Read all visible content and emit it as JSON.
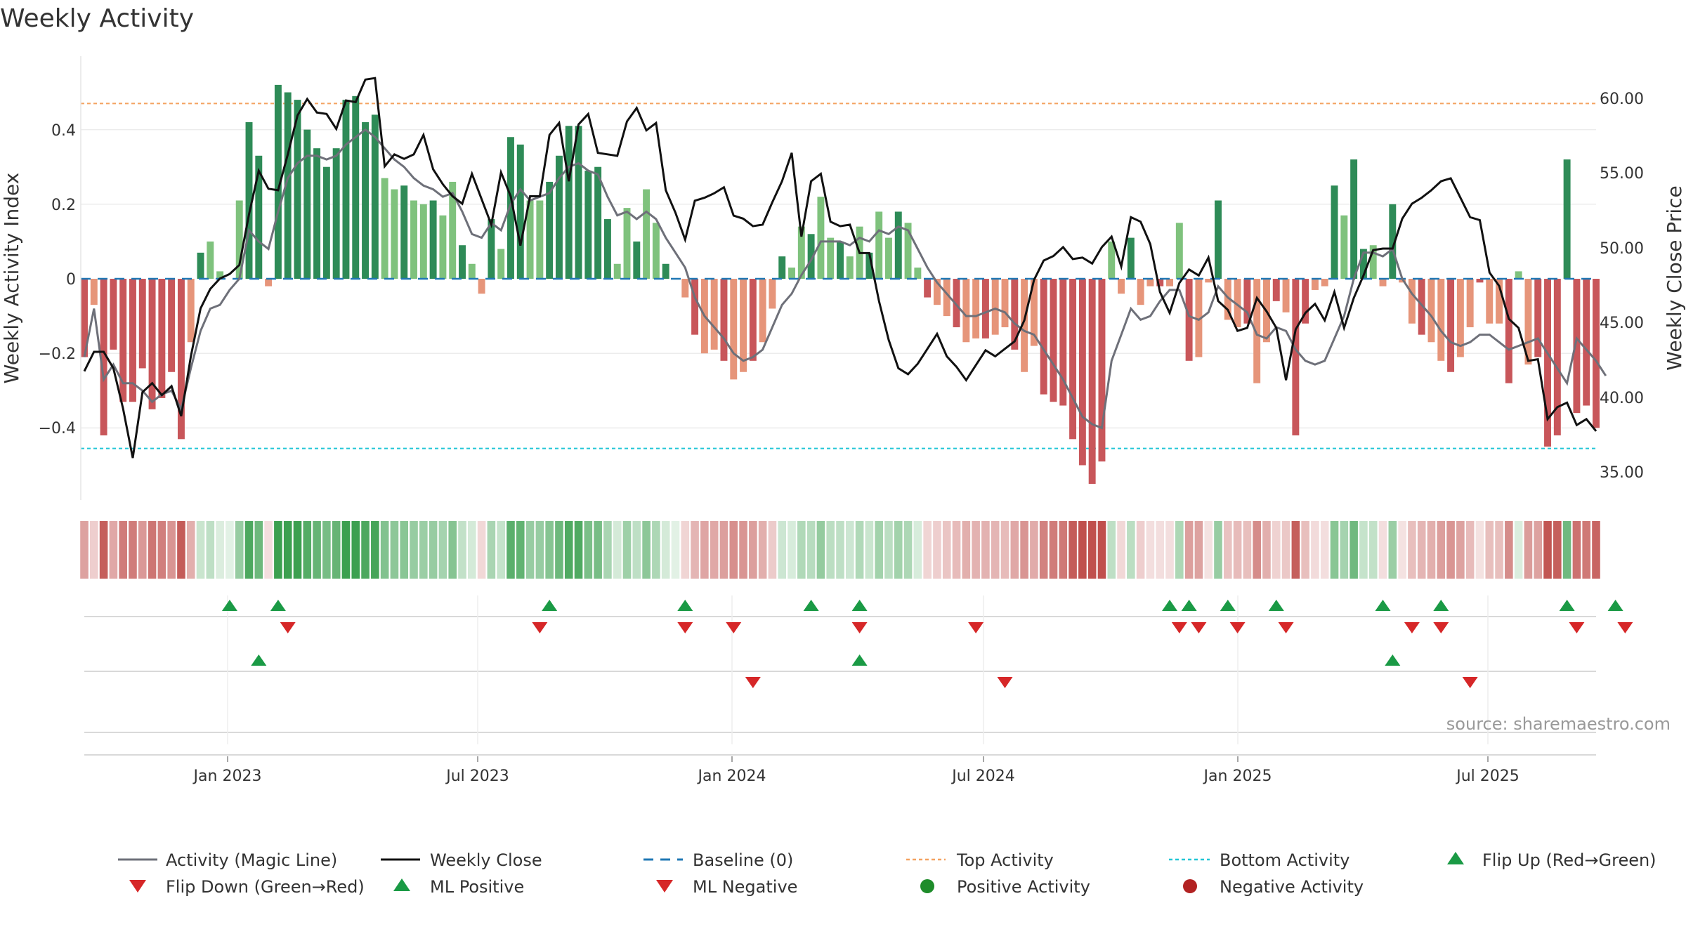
{
  "chart_data": {
    "type": "bar+line",
    "title": "Weekly Activity",
    "ylabel": "Weekly Activity Index",
    "ylabel_right": "Weekly Close Price",
    "ylim": [
      -0.6,
      0.6
    ],
    "ylim_right": [
      33.0,
      62.0
    ],
    "yticks": [
      "0.4",
      "0.2",
      "0",
      "−0.2",
      "−0.4"
    ],
    "yticks_right": [
      "60.00",
      "55.00",
      "50.00",
      "45.00",
      "40.00",
      "35.00"
    ],
    "xticks": [
      "Jan 2023",
      "Jul 2023",
      "Jan 2024",
      "Jul 2024",
      "Jan 2025",
      "Jul 2025"
    ],
    "top_activity": 0.47,
    "bottom_activity": -0.455,
    "weeks": 157,
    "activity": [
      -0.21,
      -0.07,
      -0.42,
      -0.19,
      -0.33,
      -0.33,
      -0.24,
      -0.35,
      -0.32,
      -0.25,
      -0.43,
      -0.17,
      0.07,
      0.1,
      0.02,
      0.0,
      0.21,
      0.42,
      0.33,
      -0.02,
      0.52,
      0.5,
      0.48,
      0.4,
      0.35,
      0.3,
      0.35,
      0.48,
      0.49,
      0.42,
      0.44,
      0.27,
      0.24,
      0.25,
      0.21,
      0.2,
      0.21,
      0.17,
      0.26,
      0.09,
      0.04,
      -0.04,
      0.16,
      0.08,
      0.38,
      0.36,
      0.21,
      0.21,
      0.26,
      0.33,
      0.41,
      0.41,
      0.29,
      0.3,
      0.16,
      0.04,
      0.19,
      0.1,
      0.24,
      0.15,
      0.04,
      0.0,
      -0.05,
      -0.15,
      -0.2,
      -0.19,
      -0.22,
      -0.27,
      -0.25,
      -0.22,
      -0.17,
      -0.08,
      0.06,
      0.03,
      0.14,
      0.12,
      0.22,
      0.11,
      0.1,
      0.06,
      0.14,
      0.07,
      0.18,
      0.11,
      0.18,
      0.15,
      0.03,
      -0.05,
      -0.07,
      -0.1,
      -0.13,
      -0.17,
      -0.16,
      -0.16,
      -0.15,
      -0.13,
      -0.19,
      -0.25,
      -0.18,
      -0.31,
      -0.33,
      -0.34,
      -0.43,
      -0.5,
      -0.55,
      -0.49,
      0.1,
      -0.04,
      0.11,
      -0.07,
      -0.02,
      -0.02,
      -0.02,
      0.15,
      -0.22,
      -0.21,
      -0.01,
      0.21,
      -0.11,
      -0.13,
      -0.12,
      -0.28,
      -0.17,
      -0.06,
      -0.09,
      -0.42,
      -0.12,
      -0.03,
      -0.02,
      0.25,
      0.17,
      0.32,
      0.08,
      0.09,
      -0.02,
      0.2,
      -0.01,
      -0.12,
      -0.15,
      -0.17,
      -0.22,
      -0.25,
      -0.21,
      -0.13,
      -0.01,
      -0.12,
      -0.12,
      -0.28,
      0.02,
      -0.23,
      -0.21,
      -0.45,
      -0.42,
      0.32,
      -0.36,
      -0.34,
      -0.4
    ],
    "magic_line": [
      -0.21,
      -0.08,
      -0.27,
      -0.23,
      -0.28,
      -0.28,
      -0.3,
      -0.33,
      -0.31,
      -0.3,
      -0.35,
      -0.24,
      -0.14,
      -0.08,
      -0.07,
      -0.03,
      0.0,
      0.13,
      0.1,
      0.08,
      0.18,
      0.27,
      0.31,
      0.33,
      0.33,
      0.32,
      0.33,
      0.36,
      0.38,
      0.4,
      0.38,
      0.35,
      0.32,
      0.3,
      0.27,
      0.25,
      0.24,
      0.22,
      0.23,
      0.18,
      0.12,
      0.11,
      0.15,
      0.13,
      0.2,
      0.24,
      0.21,
      0.22,
      0.23,
      0.27,
      0.3,
      0.31,
      0.29,
      0.28,
      0.22,
      0.17,
      0.18,
      0.16,
      0.18,
      0.16,
      0.11,
      0.07,
      0.03,
      -0.05,
      -0.1,
      -0.13,
      -0.16,
      -0.2,
      -0.22,
      -0.21,
      -0.19,
      -0.13,
      -0.07,
      -0.04,
      0.01,
      0.05,
      0.1,
      0.1,
      0.1,
      0.09,
      0.11,
      0.1,
      0.13,
      0.12,
      0.14,
      0.13,
      0.08,
      0.03,
      -0.01,
      -0.04,
      -0.07,
      -0.1,
      -0.1,
      -0.09,
      -0.08,
      -0.09,
      -0.12,
      -0.14,
      -0.15,
      -0.19,
      -0.23,
      -0.27,
      -0.32,
      -0.37,
      -0.39,
      -0.4,
      -0.22,
      -0.15,
      -0.08,
      -0.11,
      -0.1,
      -0.06,
      -0.03,
      -0.03,
      -0.1,
      -0.11,
      -0.09,
      -0.02,
      -0.05,
      -0.07,
      -0.09,
      -0.15,
      -0.16,
      -0.13,
      -0.14,
      -0.19,
      -0.22,
      -0.23,
      -0.22,
      -0.16,
      -0.1,
      0.0,
      0.07,
      0.07,
      0.06,
      0.08,
      0.0,
      -0.04,
      -0.07,
      -0.1,
      -0.14,
      -0.17,
      -0.18,
      -0.17,
      -0.15,
      -0.15,
      -0.17,
      -0.19,
      -0.18,
      -0.17,
      -0.16,
      -0.2,
      -0.24,
      -0.28,
      -0.16,
      -0.19,
      -0.22,
      -0.26
    ],
    "weekly_close": [
      41.8,
      43.1,
      43.1,
      42.0,
      39.3,
      36.0,
      40.4,
      41.0,
      40.2,
      40.8,
      38.8,
      42.8,
      46.0,
      47.3,
      48.0,
      48.3,
      48.9,
      52.3,
      55.2,
      54.0,
      53.9,
      56.3,
      58.9,
      60.0,
      59.1,
      59.0,
      58.0,
      59.9,
      59.8,
      61.3,
      61.4,
      55.5,
      56.3,
      56.0,
      56.3,
      57.6,
      55.3,
      54.3,
      53.5,
      53.0,
      55.0,
      53.3,
      51.6,
      55.1,
      53.5,
      50.2,
      53.5,
      53.5,
      57.6,
      58.4,
      54.5,
      58.3,
      59.0,
      56.4,
      56.3,
      56.2,
      58.5,
      59.4,
      57.9,
      58.4,
      53.9,
      52.4,
      50.6,
      53.2,
      53.4,
      53.7,
      54.1,
      52.2,
      52.0,
      51.5,
      51.6,
      53.1,
      54.5,
      56.4,
      50.8,
      54.5,
      55.0,
      51.8,
      51.5,
      51.6,
      49.7,
      49.7,
      46.5,
      43.9,
      42.0,
      41.6,
      42.3,
      43.3,
      44.3,
      42.8,
      42.1,
      41.2,
      42.2,
      43.2,
      42.8,
      43.3,
      43.8,
      45.2,
      47.9,
      49.2,
      49.5,
      50.1,
      49.3,
      49.4,
      49.0,
      50.1,
      50.8,
      48.8,
      52.1,
      51.8,
      50.3,
      47.1,
      45.7,
      47.7,
      48.6,
      48.2,
      49.4,
      46.5,
      45.9,
      44.5,
      44.7,
      46.7,
      45.8,
      44.7,
      41.2,
      44.6,
      45.7,
      46.3,
      45.2,
      47.1,
      44.7,
      46.7,
      48.2,
      49.9,
      50.0,
      50.0,
      52.0,
      53.0,
      53.4,
      53.9,
      54.5,
      54.7,
      53.4,
      52.1,
      51.9,
      48.4,
      47.5,
      45.3,
      44.7,
      42.5,
      42.6,
      38.6,
      39.4,
      39.7,
      38.2,
      38.6,
      37.8
    ],
    "flip_up": [
      15,
      20,
      48,
      62,
      75,
      80,
      112,
      114,
      118,
      123,
      134,
      140,
      153,
      158
    ],
    "flip_down": [
      21,
      47,
      62,
      67,
      80,
      92,
      113,
      115,
      119,
      124,
      137,
      140,
      154,
      159
    ],
    "ml_positive": [
      18,
      80,
      135
    ],
    "ml_negative": [
      69,
      95,
      143
    ],
    "legend": [
      "Activity (Magic Line)",
      "Weekly Close",
      "Baseline (0)",
      "Top Activity",
      "Bottom Activity",
      "Flip Up (Red→Green)",
      "Flip Down (Green→Red)",
      "ML Positive",
      "ML Negative",
      "Positive Activity",
      "Negative Activity"
    ],
    "source": "source: sharemaestro.com",
    "colors": {
      "pos_dark": "#2e8b57",
      "pos_light": "#7fc27d",
      "neg_dark": "#c8565a",
      "neg_light": "#e6957a",
      "magic_line": "#6e7079",
      "weekly_close": "#111111",
      "baseline": "#1f77b4",
      "top_activity": "#f4a261",
      "bottom_activity": "#22c6d6",
      "flip_up": "#1a9a45",
      "flip_down": "#d62728",
      "positive_activity": "#1e8c2a",
      "negative_activity": "#b22222"
    }
  }
}
